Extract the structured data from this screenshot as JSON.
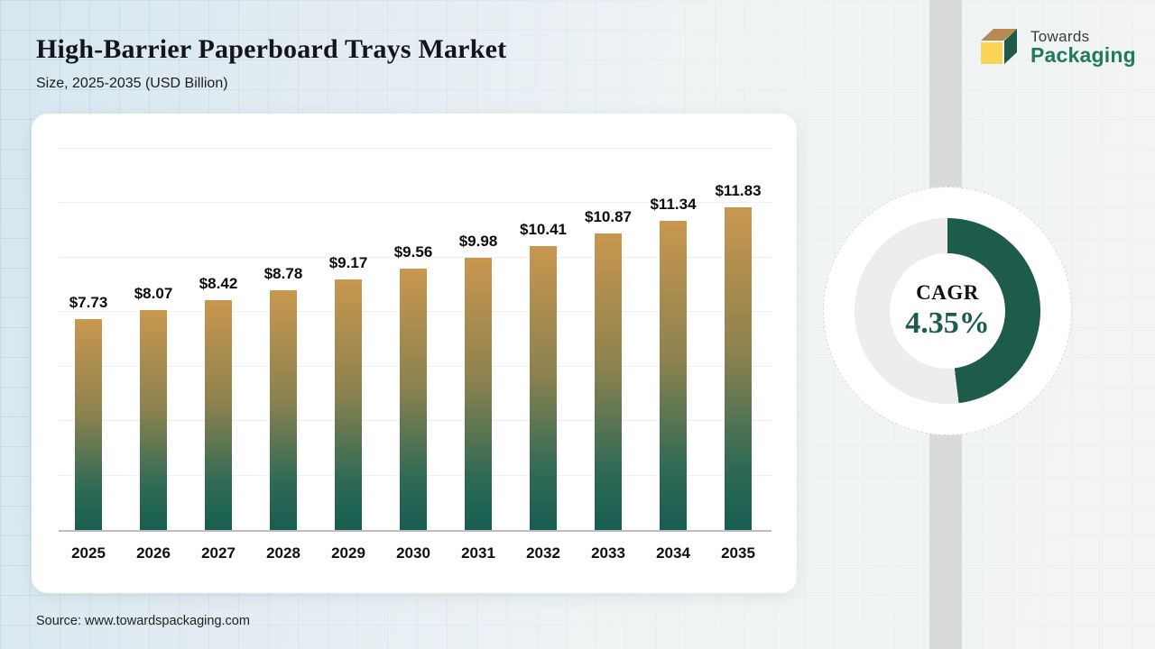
{
  "header": {
    "title": "High-Barrier Paperboard Trays Market",
    "subtitle": "Size, 2025-2035 (USD Billion)"
  },
  "logo": {
    "line1": "Towards",
    "line2": "Packaging"
  },
  "chart_data": {
    "type": "bar",
    "title": "High-Barrier Paperboard Trays Market Size, 2025-2035 (USD Billion)",
    "categories": [
      "2025",
      "2026",
      "2027",
      "2028",
      "2029",
      "2030",
      "2031",
      "2032",
      "2033",
      "2034",
      "2035"
    ],
    "values": [
      7.73,
      8.07,
      8.42,
      8.78,
      9.17,
      9.56,
      9.98,
      10.41,
      10.87,
      11.34,
      11.83
    ],
    "value_labels": [
      "$7.73",
      "$8.07",
      "$8.42",
      "$8.78",
      "$9.17",
      "$9.56",
      "$9.98",
      "$10.41",
      "$10.87",
      "$11.34",
      "$11.83"
    ],
    "xlabel": "",
    "ylabel": "",
    "ylim": [
      0,
      14
    ],
    "gridline_step": 2,
    "grid": true,
    "legend": false,
    "bar_color_top": "#c9974f",
    "bar_color_bottom": "#175e51"
  },
  "cagr": {
    "label": "CAGR",
    "value": "4.35%",
    "arc_degrees": 173,
    "arc_color": "#1d5c4b",
    "track_color": "#ededed"
  },
  "source": {
    "text": "Source: www.towardspackaging.com"
  },
  "colors": {
    "accent_green": "#1d5c4b",
    "logo_green": "#217a5a",
    "logo_yellow": "#f9d457",
    "logo_tan": "#b78a52",
    "strip_gray": "#d8dadb",
    "background_blue": "#d7e7f0"
  }
}
